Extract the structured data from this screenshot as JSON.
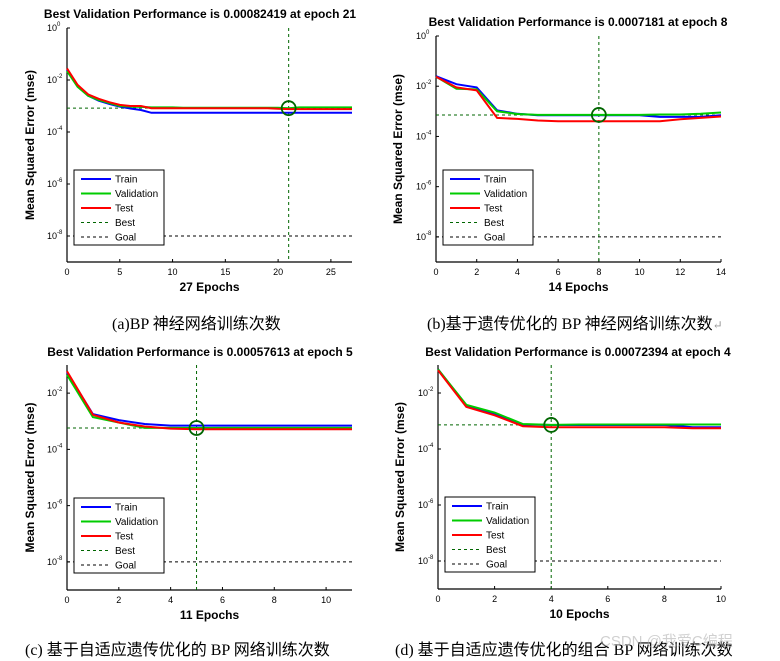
{
  "colors": {
    "train": "#0000ff",
    "validation": "#00cc00",
    "test": "#ff0000",
    "best": "#006600",
    "goal": "#000000"
  },
  "legend_labels": [
    "Train",
    "Validation",
    "Test",
    "Best",
    "Goal"
  ],
  "ylabel": "Mean Squared Error  (mse)",
  "captions": {
    "a": "(a)BP 神经网络训练次数",
    "b": "(b)基于遗传优化的 BP 神经网络训练次数",
    "c": "(c) 基于自适应遗传优化的 BP 网络训练次数",
    "d": "(d) 基于自适应遗传优化的组合 BP 网络训练次数"
  },
  "watermark": "CSDN @我爱C编程",
  "chart_data": [
    {
      "id": "a",
      "type": "line",
      "yscale": "log",
      "title": "Best Validation Performance is 0.00082419 at epoch 21",
      "xlabel": "27 Epochs",
      "ylabel": "Mean Squared Error  (mse)",
      "xlim": [
        0,
        27
      ],
      "ylim_exp": [
        -9,
        0
      ],
      "xticks": [
        0,
        5,
        10,
        15,
        20,
        25
      ],
      "yticks_exp": [
        0,
        -2,
        -4,
        -6,
        -8
      ],
      "best_epoch": 21,
      "best_value": 0.00082419,
      "goal": 1e-08,
      "legend": "lower-left",
      "x": [
        0,
        1,
        2,
        3,
        4,
        5,
        6,
        7,
        8,
        9,
        10,
        11,
        12,
        13,
        14,
        15,
        16,
        17,
        18,
        19,
        20,
        21,
        22,
        23,
        24,
        25,
        26,
        27
      ],
      "series": [
        {
          "name": "Train",
          "values": [
            0.025,
            0.006,
            0.0025,
            0.0016,
            0.0012,
            0.00095,
            0.0008,
            0.0007,
            0.00055,
            0.00055,
            0.00055,
            0.00055,
            0.00055,
            0.00055,
            0.00055,
            0.00055,
            0.00055,
            0.00055,
            0.00055,
            0.00055,
            0.00055,
            0.00055,
            0.00055,
            0.00055,
            0.00055,
            0.00055,
            0.00055,
            0.00055
          ]
        },
        {
          "name": "Validation",
          "values": [
            0.022,
            0.0055,
            0.0025,
            0.0017,
            0.0013,
            0.001,
            0.00095,
            0.00092,
            0.00088,
            0.00088,
            0.00088,
            0.00086,
            0.00086,
            0.00086,
            0.00086,
            0.00086,
            0.00086,
            0.00086,
            0.00086,
            0.00086,
            0.00086,
            0.00082419,
            0.00088,
            0.00088,
            0.00088,
            0.00088,
            0.00088,
            0.00088
          ]
        },
        {
          "name": "Test",
          "values": [
            0.028,
            0.0065,
            0.0028,
            0.0019,
            0.0014,
            0.0011,
            0.001,
            0.001,
            0.00082,
            0.00082,
            0.00082,
            0.00082,
            0.00082,
            0.00082,
            0.00082,
            0.00082,
            0.00082,
            0.00082,
            0.00082,
            0.00082,
            0.00078,
            0.00076,
            0.00076,
            0.00076,
            0.00076,
            0.00076,
            0.00076,
            0.00076
          ]
        }
      ]
    },
    {
      "id": "b",
      "type": "line",
      "yscale": "log",
      "title": "Best Validation Performance is 0.0007181 at epoch 8",
      "xlabel": "14 Epochs",
      "ylabel": "Mean Squared Error  (mse)",
      "xlim": [
        0,
        14
      ],
      "ylim_exp": [
        -9,
        0
      ],
      "xticks": [
        0,
        2,
        4,
        6,
        8,
        10,
        12,
        14
      ],
      "yticks_exp": [
        0,
        -2,
        -4,
        -6,
        -8
      ],
      "best_epoch": 8,
      "best_value": 0.0007181,
      "goal": 1e-08,
      "legend": "lower-left",
      "x": [
        0,
        1,
        2,
        3,
        4,
        5,
        6,
        7,
        8,
        9,
        10,
        11,
        12,
        13,
        14
      ],
      "series": [
        {
          "name": "Train",
          "values": [
            0.025,
            0.012,
            0.009,
            0.0011,
            0.0008,
            0.0007,
            0.0007,
            0.0007,
            0.0007,
            0.0007,
            0.0007,
            0.0006,
            0.0006,
            0.0006,
            0.0007
          ]
        },
        {
          "name": "Validation",
          "values": [
            0.024,
            0.008,
            0.0075,
            0.001,
            0.00078,
            0.00072,
            0.00072,
            0.00072,
            0.0007181,
            0.00072,
            0.00072,
            0.00075,
            0.00075,
            0.0008,
            0.0009
          ]
        },
        {
          "name": "Test",
          "values": [
            0.024,
            0.009,
            0.0068,
            0.00055,
            0.0005,
            0.00043,
            0.0004,
            0.0004,
            0.0004,
            0.0004,
            0.0004,
            0.0004,
            0.00048,
            0.00055,
            0.00062
          ]
        }
      ]
    },
    {
      "id": "c",
      "type": "line",
      "yscale": "log",
      "title": "Best Validation Performance is 0.00057613 at epoch 5",
      "xlabel": "11 Epochs",
      "ylabel": "Mean Squared Error  (mse)",
      "xlim": [
        0,
        11
      ],
      "ylim_exp": [
        -9,
        -1
      ],
      "xticks": [
        0,
        2,
        4,
        6,
        8,
        10
      ],
      "yticks_exp": [
        -2,
        -4,
        -6,
        -8
      ],
      "best_epoch": 5,
      "best_value": 0.00057613,
      "goal": 1e-08,
      "legend": "lower-left",
      "x": [
        0,
        1,
        2,
        3,
        4,
        5,
        6,
        7,
        8,
        9,
        10,
        11
      ],
      "series": [
        {
          "name": "Train",
          "values": [
            0.055,
            0.0018,
            0.0011,
            0.0008,
            0.0007,
            0.0007,
            0.0007,
            0.0007,
            0.0007,
            0.0007,
            0.0007,
            0.0007
          ]
        },
        {
          "name": "Validation",
          "values": [
            0.045,
            0.0014,
            0.0009,
            0.00058,
            0.00058,
            0.00057613,
            0.00058,
            0.00058,
            0.00058,
            0.00058,
            0.00058,
            0.00058
          ]
        },
        {
          "name": "Test",
          "values": [
            0.06,
            0.0017,
            0.0009,
            0.00065,
            0.00055,
            0.00052,
            0.00052,
            0.00052,
            0.00052,
            0.00052,
            0.00052,
            0.00052
          ]
        }
      ]
    },
    {
      "id": "d",
      "type": "line",
      "yscale": "log",
      "title": "Best Validation Performance is 0.00072394 at epoch 4",
      "xlabel": "10 Epochs",
      "ylabel": "Mean Squared Error  (mse)",
      "xlim": [
        0,
        10
      ],
      "ylim_exp": [
        -9,
        -1
      ],
      "xticks": [
        0,
        2,
        4,
        6,
        8,
        10
      ],
      "yticks_exp": [
        -2,
        -4,
        -6,
        -8
      ],
      "best_epoch": 4,
      "best_value": 0.00072394,
      "goal": 1e-08,
      "legend": "lower-left",
      "x": [
        0,
        1,
        2,
        3,
        4,
        5,
        6,
        7,
        8,
        9,
        10
      ],
      "series": [
        {
          "name": "Train",
          "values": [
            0.07,
            0.0035,
            0.0018,
            0.00075,
            0.00072,
            0.00072,
            0.00072,
            0.00072,
            0.00072,
            0.0006,
            0.0006
          ]
        },
        {
          "name": "Validation",
          "values": [
            0.07,
            0.0038,
            0.002,
            0.00078,
            0.00072394,
            0.00075,
            0.00075,
            0.00075,
            0.00075,
            0.00075,
            0.00075
          ]
        },
        {
          "name": "Test",
          "values": [
            0.065,
            0.0032,
            0.0016,
            0.00065,
            0.0006,
            0.0006,
            0.0006,
            0.0006,
            0.0006,
            0.00055,
            0.00055
          ]
        }
      ]
    }
  ]
}
